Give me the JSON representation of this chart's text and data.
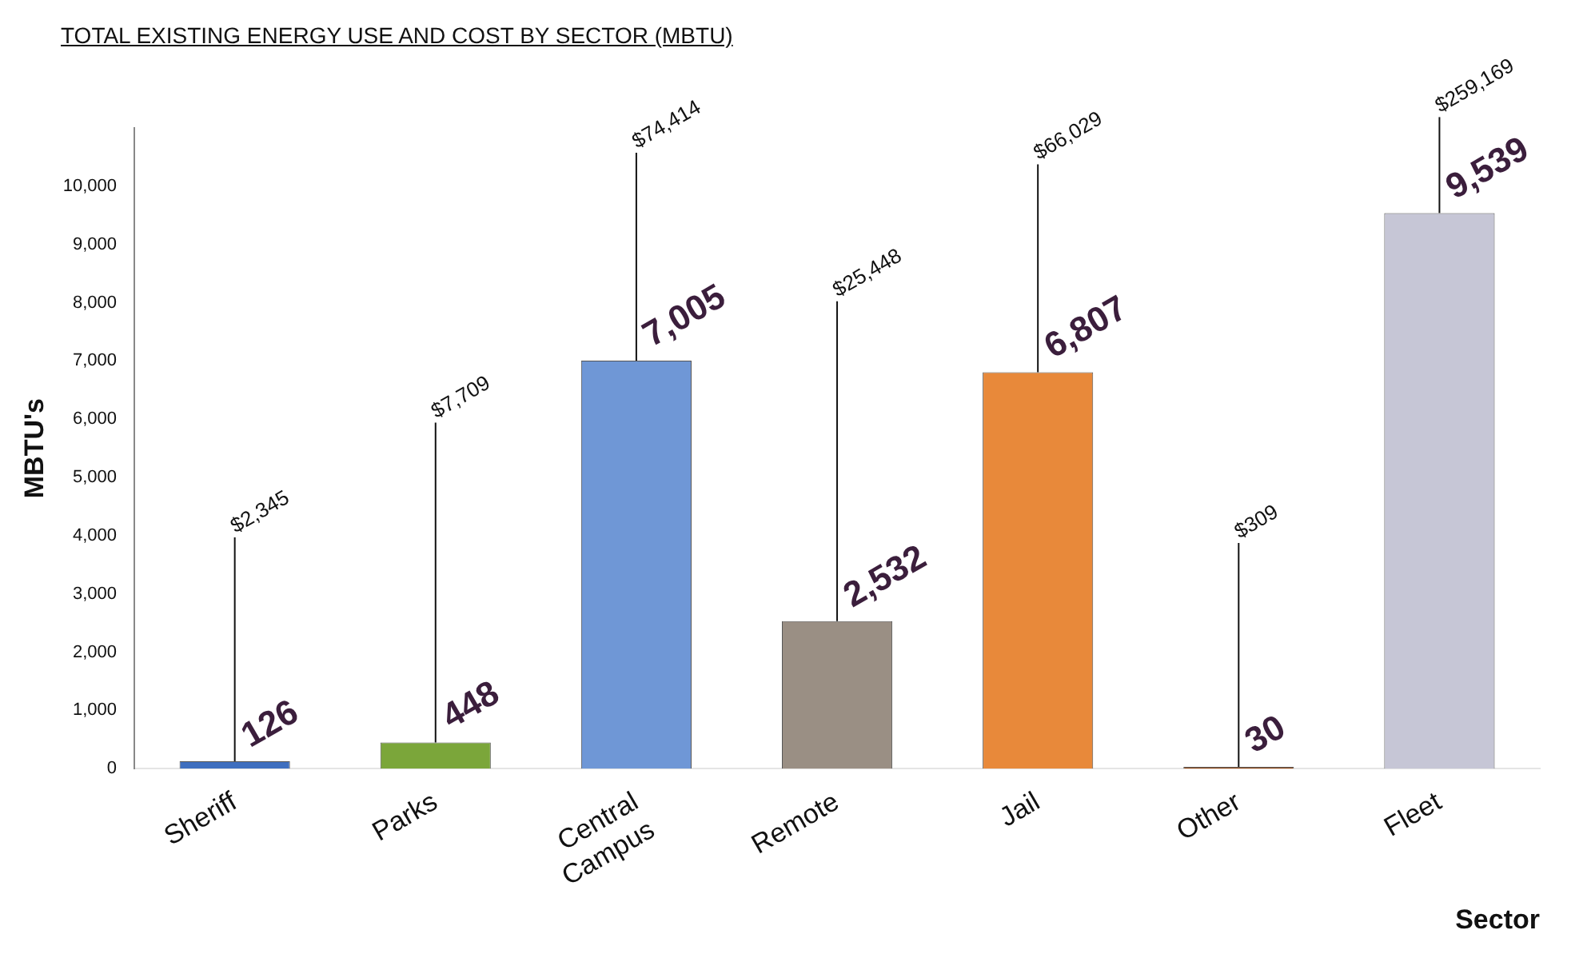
{
  "chart_data": {
    "type": "bar",
    "title": "TOTAL EXISTING ENERGY USE AND COST BY SECTOR (MBTU)",
    "xlabel": "Sector",
    "ylabel": "MBTU's",
    "categories": [
      "Sheriff",
      "Parks",
      "Central Campus",
      "Remote",
      "Jail",
      "Other",
      "Fleet"
    ],
    "values": [
      126,
      448,
      7005,
      2532,
      6807,
      30,
      9539
    ],
    "colors": [
      "#3f6fbf",
      "#7ba63a",
      "#6f97d6",
      "#9a8f84",
      "#e8893a",
      "#9c4f1c",
      "#c6c6d6"
    ],
    "value_labels": [
      "126",
      "448",
      "7,005",
      "2,532",
      "6,807",
      "30",
      "9,539"
    ],
    "ylim": [
      0,
      11000
    ],
    "yticks": [
      0,
      {
        "value": 1000,
        "label": "1,000"
      },
      {
        "value": 2000,
        "label": "2,000"
      },
      {
        "value": 3000,
        "label": "3,000"
      },
      {
        "value": 4000,
        "label": "4,000"
      },
      {
        "value": 5000,
        "label": "5,000"
      },
      {
        "value": 6000,
        "label": "6,000"
      },
      {
        "value": 7000,
        "label": "7,000"
      },
      {
        "value": 8000,
        "label": "8,000"
      },
      {
        "value": 9000,
        "label": "9,000"
      },
      {
        "value": 10000,
        "label": "10,000"
      }
    ],
    "grid": false,
    "annotations": [
      {
        "text": "$2,345",
        "x": "Sheriff",
        "y": 126
      },
      {
        "text": "$7,709",
        "x": "Parks",
        "y": 448
      },
      {
        "text": "$74,414",
        "x": "Central Campus",
        "y": 7005
      },
      {
        "text": "$25,448",
        "x": "Remote",
        "y": 2532
      },
      {
        "text": "$66,029",
        "x": "Jail",
        "y": 6807
      },
      {
        "text": "$309",
        "x": "Other",
        "y": 30
      },
      {
        "text": "$259,169",
        "x": "Fleet",
        "y": 9539
      }
    ]
  }
}
